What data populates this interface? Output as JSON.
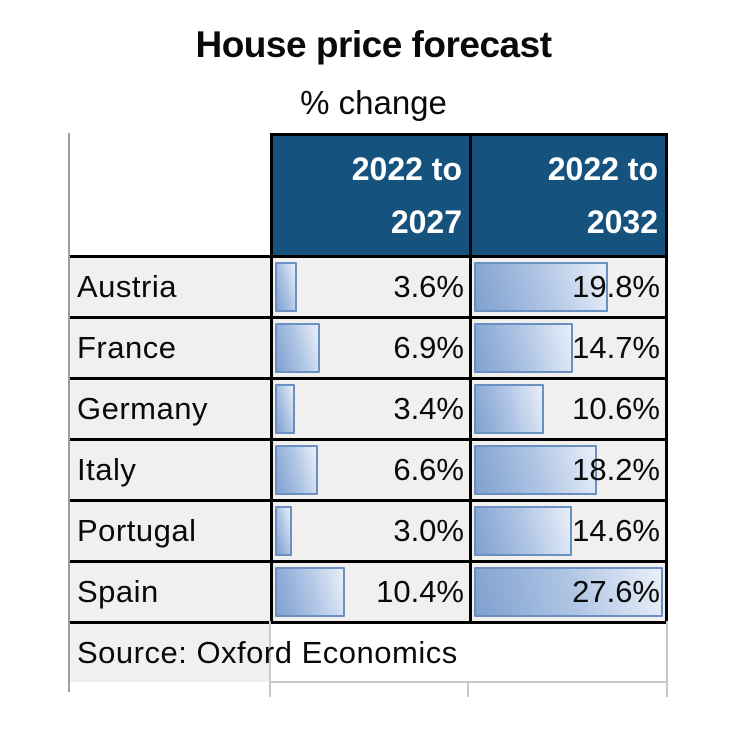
{
  "title": "House price forecast",
  "subtitle": "% change",
  "source": "Source: Oxford Economics",
  "table": {
    "header": [
      {
        "line1": "2022 to",
        "line2": "2027"
      },
      {
        "line1": "2022 to",
        "line2": "2032"
      }
    ],
    "rows": [
      {
        "label": "Austria",
        "p2027": "3.6%",
        "p2032": "19.8%",
        "v2027": 3.6,
        "v2032": 19.8
      },
      {
        "label": "France",
        "p2027": "6.9%",
        "p2032": "14.7%",
        "v2027": 6.9,
        "v2032": 14.7
      },
      {
        "label": "Germany",
        "p2027": "3.4%",
        "p2032": "10.6%",
        "v2027": 3.4,
        "v2032": 10.6
      },
      {
        "label": "Italy",
        "p2027": "6.6%",
        "p2032": "18.2%",
        "v2027": 6.6,
        "v2032": 18.2
      },
      {
        "label": "Portugal",
        "p2027": "3.0%",
        "p2032": "14.6%",
        "v2027": 3.0,
        "v2032": 14.6
      },
      {
        "label": "Spain",
        "p2027": "10.4%",
        "p2032": "27.6%",
        "v2027": 10.4,
        "v2032": 27.6
      }
    ],
    "bar_scale_max": 27.6
  },
  "colors": {
    "header_bg": "#15527E",
    "header_text": "#FFFFFF",
    "cell_bg": "#F1F0EE",
    "row_border": "#000000",
    "bar_border": "#6A90C2",
    "bar_fill_dark": "#7FA0CF",
    "bar_fill_light": "#E9EFF9",
    "faint_gridline": "#C9C9C9"
  },
  "chart_data": {
    "type": "table",
    "title": "House price forecast",
    "subtitle": "% change",
    "columns": [
      "2022 to 2027",
      "2022 to 2032"
    ],
    "categories": [
      "Austria",
      "France",
      "Germany",
      "Italy",
      "Portugal",
      "Spain"
    ],
    "series": [
      {
        "name": "2022 to 2027",
        "values": [
          3.6,
          6.9,
          3.4,
          6.6,
          3.0,
          10.4
        ]
      },
      {
        "name": "2022 to 2032",
        "values": [
          19.8,
          14.7,
          10.6,
          18.2,
          14.6,
          27.6
        ]
      }
    ],
    "value_unit": "%",
    "bar_style": "in-cell data bars, left-aligned, shared scale 0 to 27.6",
    "source": "Source: Oxford Economics"
  }
}
